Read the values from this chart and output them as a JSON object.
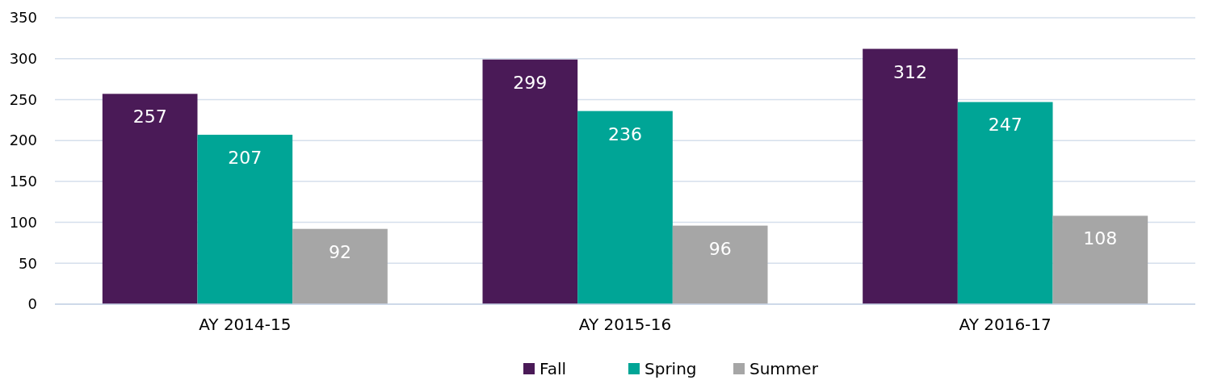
{
  "chart_data": {
    "type": "bar",
    "categories": [
      "AY 2014-15",
      "AY 2015-16",
      "AY 2016-17"
    ],
    "series": [
      {
        "name": "Fall",
        "color": "#4a1a57",
        "values": [
          257,
          299,
          312
        ]
      },
      {
        "name": "Spring",
        "color": "#00a596",
        "values": [
          207,
          236,
          247
        ]
      },
      {
        "name": "Summer",
        "color": "#a6a6a6",
        "values": [
          92,
          96,
          108
        ]
      }
    ],
    "ylim": [
      0,
      350
    ],
    "yticks": [
      0,
      50,
      100,
      150,
      200,
      250,
      300,
      350
    ],
    "grid": "y",
    "legend": "bottom",
    "data_labels": true
  }
}
